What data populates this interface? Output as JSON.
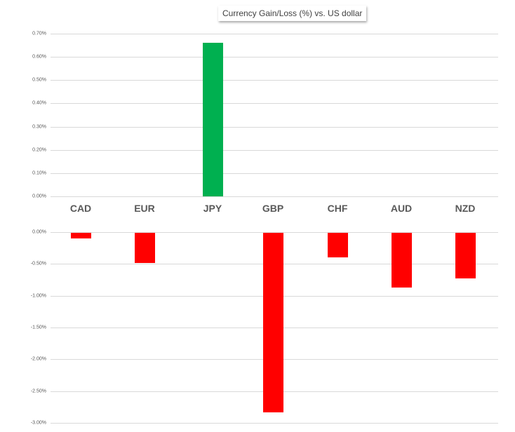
{
  "title": "Currency  Gain/Loss (%) vs. US dollar",
  "chart_data": [
    {
      "type": "bar",
      "title": "Currency  Gain/Loss (%) vs. US dollar",
      "panel": "gains",
      "categories": [
        "CAD",
        "EUR",
        "JPY",
        "GBP",
        "CHF",
        "AUD",
        "NZD"
      ],
      "values": [
        0,
        0,
        0.66,
        0,
        0,
        0,
        0
      ],
      "xlabel": "",
      "ylabel": "",
      "ylim": [
        0,
        0.7
      ],
      "yticks": [
        "0.70%",
        "0.60%",
        "0.50%",
        "0.40%",
        "0.30%",
        "0.20%",
        "0.10%",
        "0.00%"
      ],
      "grid": true,
      "bar_color": "#00b050"
    },
    {
      "type": "bar",
      "panel": "losses",
      "categories": [
        "CAD",
        "EUR",
        "JPY",
        "GBP",
        "CHF",
        "AUD",
        "NZD"
      ],
      "values": [
        -0.1,
        -0.48,
        0,
        -2.84,
        -0.4,
        -0.87,
        -0.73
      ],
      "xlabel": "",
      "ylabel": "",
      "ylim": [
        -3.0,
        0
      ],
      "yticks": [
        "0.00%",
        "-0.50%",
        "-1.00%",
        "-1.50%",
        "-2.00%",
        "-2.50%",
        "-3.00%"
      ],
      "grid": true,
      "bar_color": "#ff0000"
    }
  ],
  "colors": {
    "gain": "#00b050",
    "loss": "#ff0000",
    "grid": "#d9d9d9",
    "text": "#595959"
  }
}
